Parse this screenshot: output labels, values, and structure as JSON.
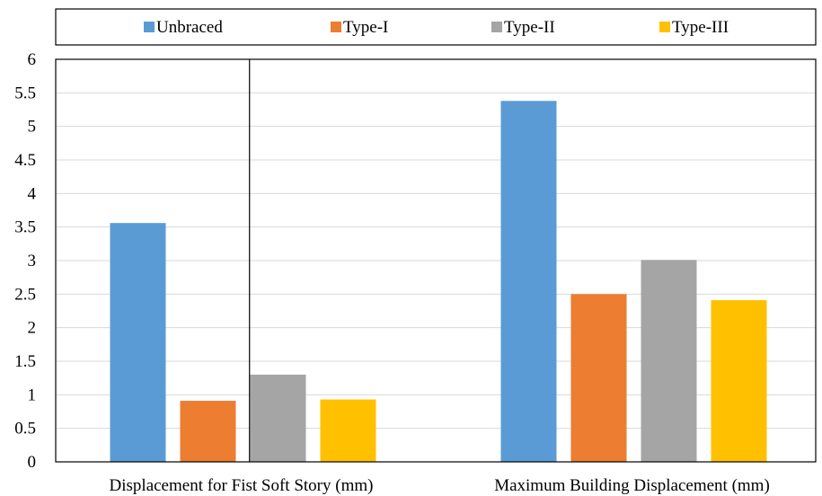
{
  "chart_data": {
    "type": "bar",
    "categories": [
      "Displacement for Fist Soft Story (mm)",
      "Maximum Building Displacement (mm)"
    ],
    "series": [
      {
        "name": "Unbraced",
        "color": "#5b9bd5",
        "values": [
          3.56,
          5.38
        ]
      },
      {
        "name": "Type-I",
        "color": "#ed7d31",
        "values": [
          0.91,
          2.5
        ]
      },
      {
        "name": "Type-II",
        "color": "#a5a5a5",
        "values": [
          1.3,
          3.01
        ]
      },
      {
        "name": "Type-III",
        "color": "#ffc000",
        "values": [
          0.93,
          2.41
        ]
      }
    ],
    "ylim": [
      0,
      6
    ],
    "yticks": [
      "0",
      "0.5",
      "1",
      "1.5",
      "2",
      "2.5",
      "3",
      "3.5",
      "4",
      "4.5",
      "5",
      "5.5",
      "6"
    ],
    "ytick_values": [
      0,
      0.5,
      1,
      1.5,
      2,
      2.5,
      3,
      3.5,
      4,
      4.5,
      5,
      5.5,
      6
    ],
    "title": "",
    "xlabel": "",
    "ylabel": "",
    "grid": true,
    "legend_position": "top"
  }
}
